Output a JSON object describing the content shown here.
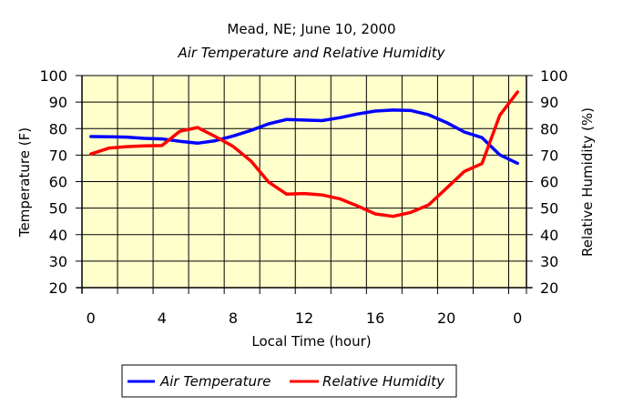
{
  "chart_data": {
    "type": "line",
    "title": "Mead, NE; June 10, 2000",
    "subtitle": "Air Temperature and Relative Humidity",
    "xlabel": "Local Time (hour)",
    "ylabel": "Temperature (F)",
    "y2label": "Relative Humidity (%)",
    "x": [
      0,
      1,
      2,
      3,
      4,
      5,
      6,
      7,
      8,
      9,
      10,
      11,
      12,
      13,
      14,
      15,
      16,
      17,
      18,
      19,
      20,
      21,
      22,
      23,
      24
    ],
    "x_tick_labels": [
      "0",
      "4",
      "8",
      "12",
      "16",
      "20",
      "0"
    ],
    "x_tick_hours": [
      0,
      4,
      8,
      12,
      16,
      20,
      24
    ],
    "ylim": [
      20,
      100
    ],
    "y2lim": [
      20,
      100
    ],
    "y_ticks": [
      20,
      30,
      40,
      50,
      60,
      70,
      80,
      90,
      100
    ],
    "y_tick_labels": [
      "20",
      "30",
      "40",
      "50",
      "60",
      "70",
      "80",
      "90",
      "100"
    ],
    "y2_tick_labels": [
      "20",
      "30",
      "40",
      "50",
      "60",
      "70",
      "80",
      "90",
      "100"
    ],
    "grid": true,
    "plot_background": "#FFFFCC",
    "legend_position": "bottom-center",
    "series": [
      {
        "name": "Air Temperature",
        "axis": "left",
        "color": "#0000FF",
        "values": [
          77.0,
          76.9,
          76.8,
          76.3,
          76.1,
          75.2,
          74.5,
          75.4,
          77.2,
          79.3,
          81.8,
          83.4,
          83.2,
          83.0,
          84.1,
          85.5,
          86.6,
          87.0,
          86.8,
          85.2,
          82.3,
          78.7,
          76.6,
          70.1,
          66.9
        ]
      },
      {
        "name": "Relative Humidity",
        "axis": "right",
        "color": "#FF0000",
        "values": [
          70.4,
          72.6,
          73.2,
          73.5,
          73.6,
          79.0,
          80.4,
          77.0,
          73.3,
          67.8,
          59.8,
          55.3,
          55.5,
          55.0,
          53.5,
          50.8,
          47.8,
          46.9,
          48.4,
          51.2,
          57.5,
          63.8,
          66.8,
          85.0,
          93.8
        ]
      }
    ]
  }
}
